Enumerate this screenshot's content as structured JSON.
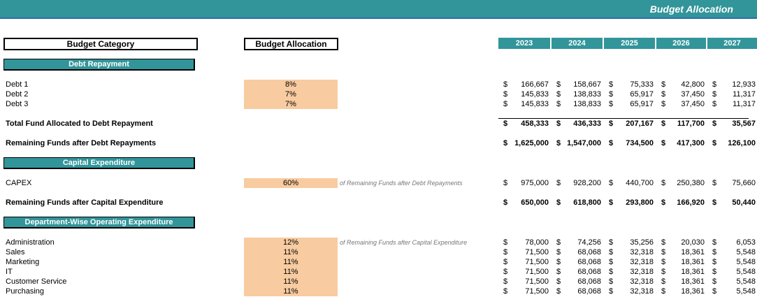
{
  "title": "Budget Allocation",
  "headers": {
    "category": "Budget Category",
    "allocation": "Budget Allocation"
  },
  "years": [
    "2023",
    "2024",
    "2025",
    "2026",
    "2027"
  ],
  "sections": [
    {
      "label": "Debt Repayment"
    },
    {
      "label": "Capital Expenditure"
    },
    {
      "label": "Department-Wise Operating Expenditure"
    }
  ],
  "rows": [
    {
      "label": "Debt 1",
      "pct": "8%",
      "values": [
        "166,667",
        "158,667",
        "75,333",
        "42,800",
        "12,933"
      ]
    },
    {
      "label": "Debt 2",
      "pct": "7%",
      "values": [
        "145,833",
        "138,833",
        "65,917",
        "37,450",
        "11,317"
      ]
    },
    {
      "label": "Debt 3",
      "pct": "7%",
      "values": [
        "145,833",
        "138,833",
        "65,917",
        "37,450",
        "11,317"
      ]
    },
    {
      "label": "Total Fund Allocated to Debt Repayment",
      "bold": true,
      "values": [
        "458,333",
        "436,333",
        "207,167",
        "117,700",
        "35,567"
      ]
    },
    {
      "label": "Remaining Funds after Debt Repayments",
      "bold": true,
      "values": [
        "1,625,000",
        "1,547,000",
        "734,500",
        "417,300",
        "126,100"
      ]
    },
    {
      "label": "CAPEX",
      "pct": "60%",
      "note": "of Remaining Funds after Debt Repayments",
      "values": [
        "975,000",
        "928,200",
        "440,700",
        "250,380",
        "75,660"
      ]
    },
    {
      "label": "Remaining Funds after Capital Expenditure",
      "bold": true,
      "values": [
        "650,000",
        "618,800",
        "293,800",
        "166,920",
        "50,440"
      ]
    },
    {
      "label": "Administration",
      "pct": "12%",
      "note": "of Remaining Funds after Capital Expenditure",
      "values": [
        "78,000",
        "74,256",
        "35,256",
        "20,030",
        "6,053"
      ]
    },
    {
      "label": "Sales",
      "pct": "11%",
      "values": [
        "71,500",
        "68,068",
        "32,318",
        "18,361",
        "5,548"
      ]
    },
    {
      "label": "Marketing",
      "pct": "11%",
      "values": [
        "71,500",
        "68,068",
        "32,318",
        "18,361",
        "5,548"
      ]
    },
    {
      "label": "IT",
      "pct": "11%",
      "values": [
        "71,500",
        "68,068",
        "32,318",
        "18,361",
        "5,548"
      ]
    },
    {
      "label": "Customer Service",
      "pct": "11%",
      "values": [
        "71,500",
        "68,068",
        "32,318",
        "18,361",
        "5,548"
      ]
    },
    {
      "label": "Purchasing",
      "pct": "11%",
      "values": [
        "71,500",
        "68,068",
        "32,318",
        "18,361",
        "5,548"
      ]
    }
  ],
  "currency": "$"
}
